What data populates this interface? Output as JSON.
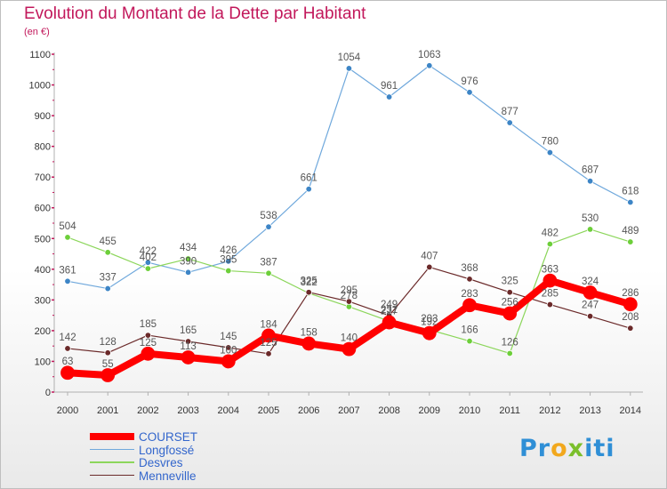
{
  "chart_data": {
    "type": "line",
    "title": "Evolution du Montant de la Dette par Habitant",
    "subtitle": "(en €)",
    "ylim": [
      0,
      1100
    ],
    "yticks": [
      0,
      100,
      200,
      300,
      400,
      500,
      600,
      700,
      800,
      900,
      1000,
      1100
    ],
    "grid": false,
    "legend_position": "bottom-left",
    "categories": [
      "2000",
      "2001",
      "2002",
      "2003",
      "2004",
      "2005",
      "2006",
      "2007",
      "2008",
      "2009",
      "2010",
      "2011",
      "2012",
      "2013",
      "2014"
    ],
    "series": [
      {
        "name": "COURSET",
        "color": "#ff0000",
        "values": [
          63,
          55,
          125,
          113,
          100,
          184,
          158,
          140,
          227,
          192,
          283,
          256,
          363,
          324,
          286
        ],
        "labels": [
          "63",
          "55",
          "125",
          "113",
          "100",
          "184",
          "158",
          "140",
          "227",
          "192",
          "283",
          "256",
          "363",
          "324",
          "286"
        ]
      },
      {
        "name": "Longfossé",
        "color": "#6fa8dc",
        "values": [
          361,
          337,
          422,
          390,
          426,
          538,
          661,
          1054,
          961,
          1063,
          976,
          877,
          780,
          687,
          618
        ],
        "labels": [
          "361",
          "337",
          "422",
          "390",
          "426",
          "538",
          "661",
          "1054",
          "961",
          "1063",
          "976",
          "877",
          "780",
          "687",
          "618"
        ]
      },
      {
        "name": "Desvres",
        "color": "#8cd65b",
        "values": [
          504,
          455,
          402,
          434,
          395,
          387,
          322,
          278,
          231,
          203,
          166,
          126,
          482,
          530,
          489
        ],
        "labels": [
          "504",
          "455",
          "402",
          "434",
          "395",
          "387",
          "322",
          "278",
          "231",
          "203",
          "166",
          "126",
          "482",
          "530",
          "489"
        ]
      },
      {
        "name": "Menneville",
        "color": "#6b2a2a",
        "values": [
          142,
          128,
          185,
          165,
          145,
          125,
          325,
          295,
          249,
          407,
          368,
          325,
          285,
          247,
          208
        ],
        "labels": [
          "142",
          "128",
          "185",
          "165",
          "145",
          "125",
          "325",
          "295",
          "249",
          "407",
          "368",
          "325",
          "285",
          "247",
          "208"
        ]
      }
    ]
  },
  "brand": {
    "p1": "Pr",
    "p2": "o",
    "p3": "x",
    "p4": "iti"
  }
}
